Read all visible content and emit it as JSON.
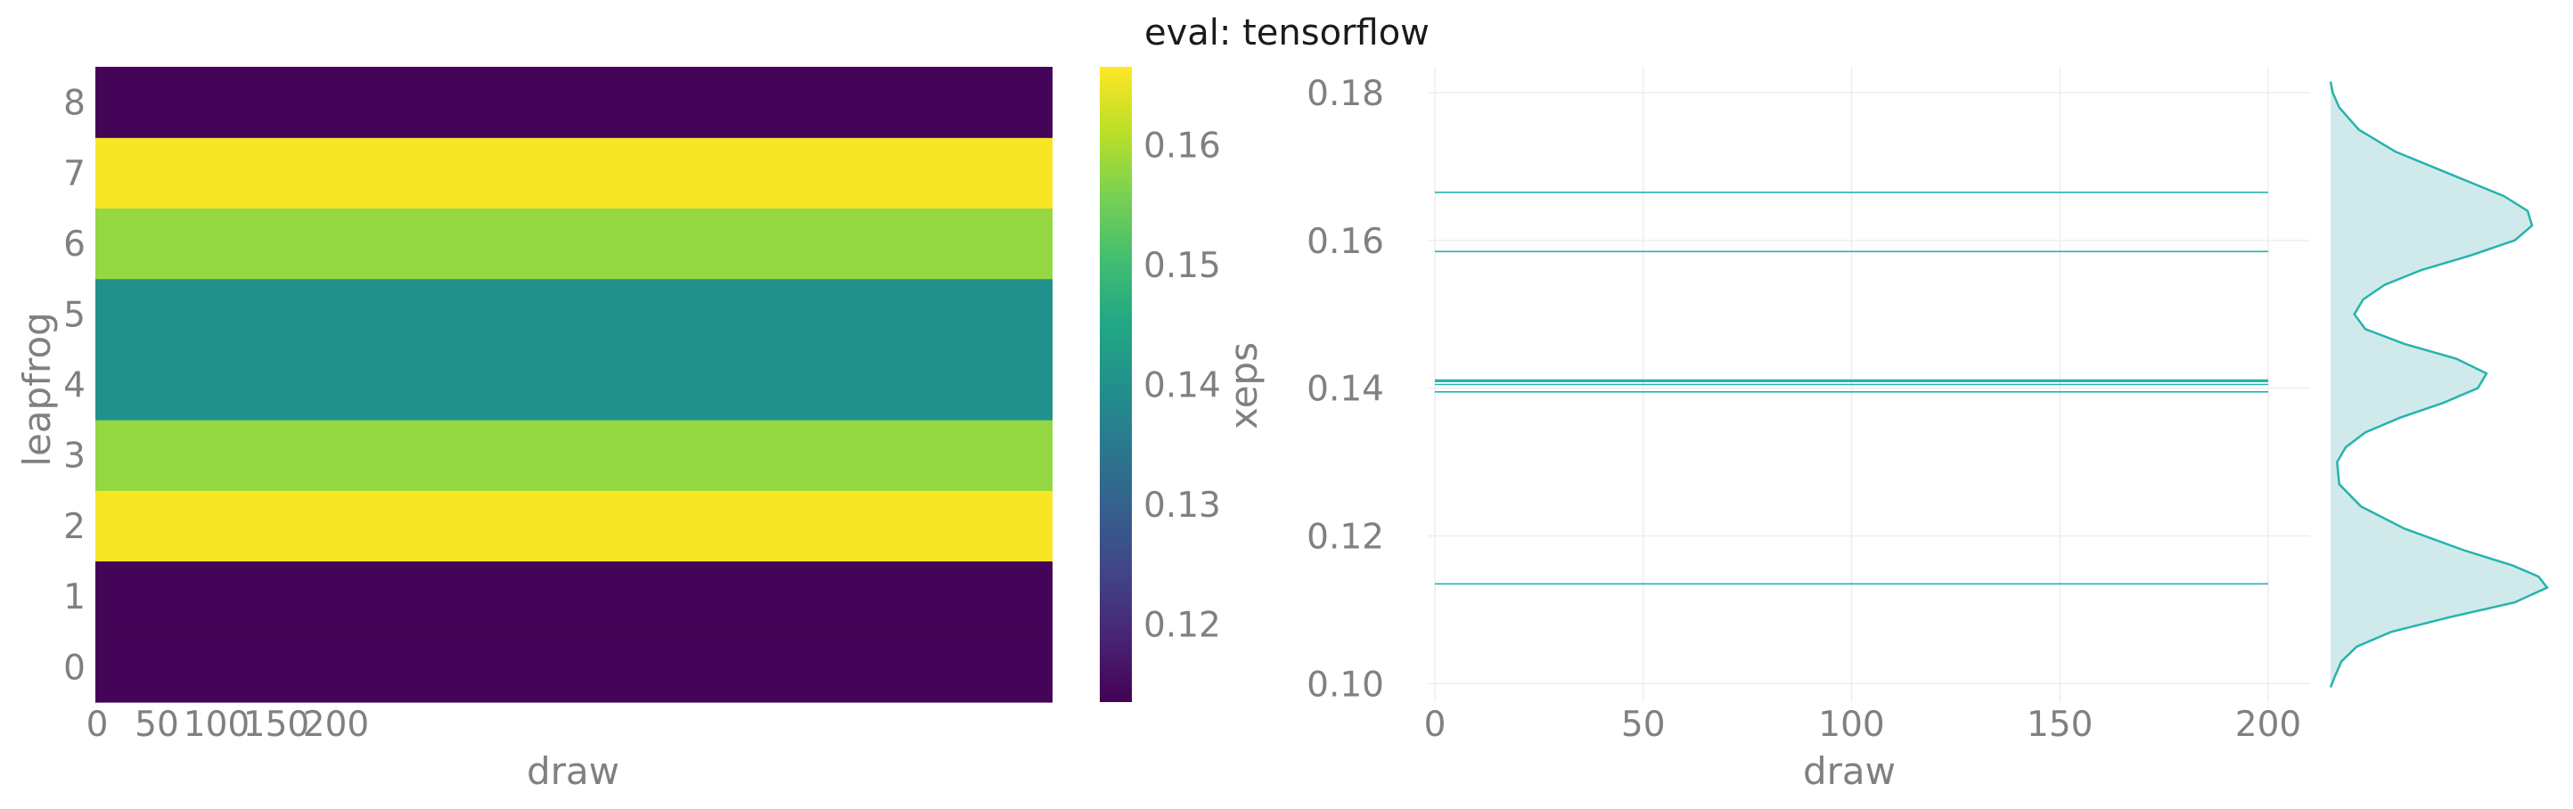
{
  "title": "eval: tensorflow",
  "chart_data": [
    {
      "type": "heatmap",
      "xlabel": "draw",
      "ylabel": "leapfrog",
      "xticks": [
        "0",
        "50",
        "100",
        "150",
        "200"
      ],
      "yticks": [
        "0",
        "1",
        "2",
        "3",
        "4",
        "5",
        "6",
        "7",
        "8"
      ],
      "rows": [
        {
          "leapfrog": 0,
          "value": 0.114
        },
        {
          "leapfrog": 1,
          "value": 0.114
        },
        {
          "leapfrog": 2,
          "value": 0.166
        },
        {
          "leapfrog": 3,
          "value": 0.158
        },
        {
          "leapfrog": 4,
          "value": 0.14
        },
        {
          "leapfrog": 5,
          "value": 0.14
        },
        {
          "leapfrog": 6,
          "value": 0.158
        },
        {
          "leapfrog": 7,
          "value": 0.166
        },
        {
          "leapfrog": 8,
          "value": 0.114
        }
      ],
      "colorbar": {
        "label": "xeps",
        "range": [
          0.1135,
          0.1665
        ],
        "ticks": [
          "0.12",
          "0.13",
          "0.14",
          "0.15",
          "0.16"
        ],
        "colormap": "viridis"
      }
    },
    {
      "type": "line",
      "xlabel": "draw",
      "ylabel": "",
      "xlim": [
        0,
        200
      ],
      "ylim": [
        0.0975,
        0.1835
      ],
      "xticks": [
        "0",
        "50",
        "100",
        "150",
        "200"
      ],
      "yticks": [
        "0.10",
        "0.12",
        "0.14",
        "0.16",
        "0.18"
      ],
      "grid": true,
      "color": "#26b3ad",
      "series": [
        {
          "values": [
            0.1665,
            0.1665
          ]
        },
        {
          "values": [
            0.1585,
            0.1585
          ]
        },
        {
          "values": [
            0.141,
            0.141
          ]
        },
        {
          "values": [
            0.1405,
            0.1405
          ]
        },
        {
          "values": [
            0.1395,
            0.1395
          ]
        },
        {
          "values": [
            0.1135,
            0.1135
          ]
        }
      ],
      "density": {
        "fill": "#d0eaeb",
        "points": [
          [
            0.1815,
            0.0
          ],
          [
            0.18,
            0.01
          ],
          [
            0.178,
            0.04
          ],
          [
            0.175,
            0.13
          ],
          [
            0.172,
            0.3
          ],
          [
            0.169,
            0.55
          ],
          [
            0.166,
            0.8
          ],
          [
            0.164,
            0.91
          ],
          [
            0.162,
            0.93
          ],
          [
            0.16,
            0.85
          ],
          [
            0.158,
            0.65
          ],
          [
            0.156,
            0.42
          ],
          [
            0.154,
            0.25
          ],
          [
            0.152,
            0.15
          ],
          [
            0.15,
            0.11
          ],
          [
            0.148,
            0.16
          ],
          [
            0.146,
            0.34
          ],
          [
            0.144,
            0.58
          ],
          [
            0.142,
            0.72
          ],
          [
            0.14,
            0.68
          ],
          [
            0.138,
            0.52
          ],
          [
            0.136,
            0.32
          ],
          [
            0.134,
            0.16
          ],
          [
            0.132,
            0.07
          ],
          [
            0.13,
            0.03
          ],
          [
            0.127,
            0.04
          ],
          [
            0.124,
            0.14
          ],
          [
            0.121,
            0.34
          ],
          [
            0.118,
            0.62
          ],
          [
            0.116,
            0.84
          ],
          [
            0.1145,
            0.96
          ],
          [
            0.113,
            1.0
          ],
          [
            0.111,
            0.85
          ],
          [
            0.109,
            0.55
          ],
          [
            0.107,
            0.28
          ],
          [
            0.105,
            0.12
          ],
          [
            0.103,
            0.05
          ],
          [
            0.101,
            0.02
          ],
          [
            0.0995,
            0.0
          ]
        ]
      }
    }
  ]
}
